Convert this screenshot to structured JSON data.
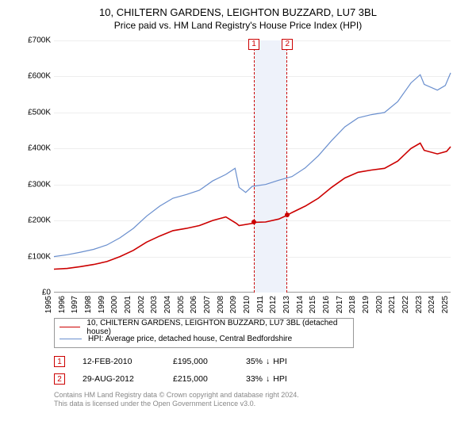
{
  "chart_type": "line",
  "title": "10, CHILTERN GARDENS, LEIGHTON BUZZARD, LU7 3BL",
  "subtitle": "Price paid vs. HM Land Registry's House Price Index (HPI)",
  "background_color": "#ffffff",
  "grid_color": "#eeeeee",
  "axis": {
    "y": {
      "min": 0,
      "max": 700000,
      "tick_step": 100000,
      "tick_prefix": "£",
      "tick_suffix": "K",
      "fontsize": 10
    },
    "x": {
      "min": 1995,
      "max": 2025,
      "ticks": [
        1995,
        1996,
        1997,
        1998,
        1999,
        2000,
        2001,
        2002,
        2003,
        2004,
        2005,
        2006,
        2007,
        2008,
        2009,
        2010,
        2011,
        2012,
        2013,
        2014,
        2015,
        2016,
        2017,
        2018,
        2019,
        2020,
        2021,
        2022,
        2023,
        2024,
        2025
      ],
      "fontsize": 10,
      "rotation": -90
    }
  },
  "band": {
    "start": 2010.12,
    "end": 2012.66,
    "fill": "#eef2fa",
    "border": "#cc0000",
    "dash": "4 3"
  },
  "series": [
    {
      "name": "10, CHILTERN GARDENS, LEIGHTON BUZZARD, LU7 3BL (detached house)",
      "legend_label": "10, CHILTERN GARDENS, LEIGHTON BUZZARD, LU7 3BL (detached house)",
      "color": "#cc0000",
      "line_width": 1.6,
      "points": [
        [
          1995,
          65000
        ],
        [
          1996,
          67000
        ],
        [
          1997,
          72000
        ],
        [
          1998,
          78000
        ],
        [
          1999,
          86000
        ],
        [
          2000,
          100000
        ],
        [
          2001,
          117000
        ],
        [
          2002,
          140000
        ],
        [
          2003,
          157000
        ],
        [
          2004,
          172000
        ],
        [
          2005,
          178000
        ],
        [
          2006,
          186000
        ],
        [
          2007,
          200000
        ],
        [
          2008,
          210000
        ],
        [
          2008.8,
          192000
        ],
        [
          2009,
          186000
        ],
        [
          2010,
          192000
        ],
        [
          2010.12,
          195000
        ],
        [
          2011,
          196000
        ],
        [
          2012,
          204000
        ],
        [
          2012.66,
          215000
        ],
        [
          2013,
          222000
        ],
        [
          2014,
          240000
        ],
        [
          2015,
          262000
        ],
        [
          2016,
          292000
        ],
        [
          2017,
          318000
        ],
        [
          2018,
          334000
        ],
        [
          2019,
          340000
        ],
        [
          2020,
          345000
        ],
        [
          2021,
          365000
        ],
        [
          2022,
          400000
        ],
        [
          2022.7,
          415000
        ],
        [
          2023,
          395000
        ],
        [
          2024,
          385000
        ],
        [
          2024.7,
          392000
        ],
        [
          2025,
          405000
        ]
      ]
    },
    {
      "name": "HPI: Average price, detached house, Central Bedfordshire",
      "legend_label": "HPI: Average price, detached house, Central Bedfordshire",
      "color": "#6a8fce",
      "line_width": 1.2,
      "points": [
        [
          1995,
          100000
        ],
        [
          1996,
          105000
        ],
        [
          1997,
          112000
        ],
        [
          1998,
          120000
        ],
        [
          1999,
          132000
        ],
        [
          2000,
          152000
        ],
        [
          2001,
          178000
        ],
        [
          2002,
          212000
        ],
        [
          2003,
          240000
        ],
        [
          2004,
          262000
        ],
        [
          2005,
          272000
        ],
        [
          2006,
          284000
        ],
        [
          2007,
          310000
        ],
        [
          2008,
          328000
        ],
        [
          2008.7,
          345000
        ],
        [
          2009,
          292000
        ],
        [
          2009.5,
          278000
        ],
        [
          2010,
          295000
        ],
        [
          2011,
          300000
        ],
        [
          2012,
          312000
        ],
        [
          2013,
          322000
        ],
        [
          2014,
          346000
        ],
        [
          2015,
          380000
        ],
        [
          2016,
          422000
        ],
        [
          2017,
          460000
        ],
        [
          2018,
          485000
        ],
        [
          2019,
          494000
        ],
        [
          2020,
          500000
        ],
        [
          2021,
          530000
        ],
        [
          2022,
          582000
        ],
        [
          2022.7,
          605000
        ],
        [
          2023,
          578000
        ],
        [
          2024,
          562000
        ],
        [
          2024.6,
          575000
        ],
        [
          2025,
          610000
        ]
      ]
    }
  ],
  "markers": [
    {
      "n": "1",
      "x": 2010.12,
      "y": 195000
    },
    {
      "n": "2",
      "x": 2012.66,
      "y": 215000
    }
  ],
  "legend": {
    "border": "#999999",
    "fontsize": 10
  },
  "events": [
    {
      "n": "1",
      "date": "12-FEB-2010",
      "price": "£195,000",
      "pct": "35%",
      "arrow": "↓",
      "note": "HPI"
    },
    {
      "n": "2",
      "date": "29-AUG-2012",
      "price": "£215,000",
      "pct": "33%",
      "arrow": "↓",
      "note": "HPI"
    }
  ],
  "footer1": "Contains HM Land Registry data © Crown copyright and database right 2024.",
  "footer2": "This data is licensed under the Open Government Licence v3.0."
}
